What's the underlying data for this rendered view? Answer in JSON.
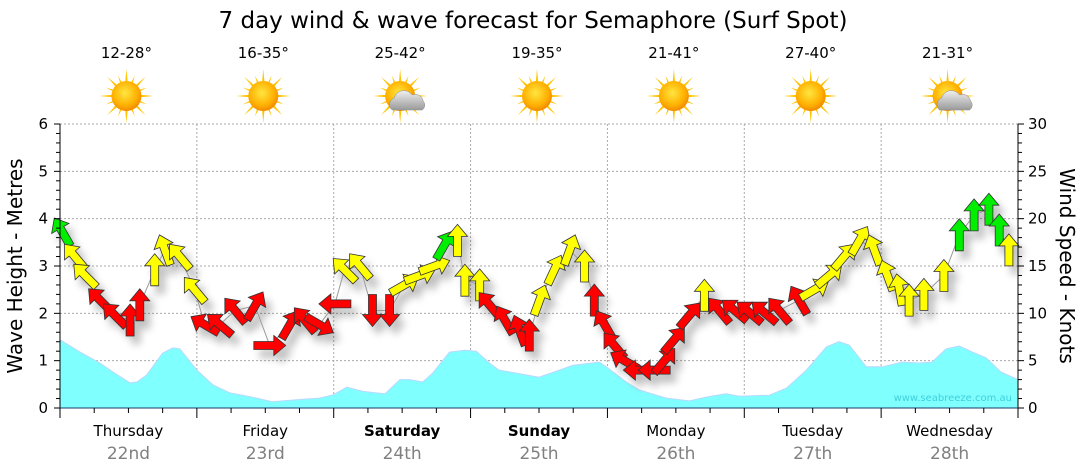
{
  "chart_data": {
    "type": "area+wind-arrows",
    "title": "7 day wind & wave forecast for Semaphore  (Surf Spot)",
    "ylabel_left": "Wave Height - Metres",
    "ylabel_right": "Wind Speed - Knots",
    "ylim_left": [
      0,
      6
    ],
    "ylim_right": [
      0,
      30
    ],
    "yticks_left": [
      "0",
      "1",
      "2",
      "3",
      "4",
      "5",
      "6"
    ],
    "yticks_right": [
      "0",
      "5",
      "10",
      "15",
      "20",
      "25",
      "30"
    ],
    "xlim_hours": [
      0,
      168
    ],
    "grid": true,
    "watermark": "www.seabreeze.com.au",
    "days": [
      {
        "day": "Thursday",
        "date": "22nd",
        "temp": "12-28°",
        "icon": "sun-icon",
        "bold": false
      },
      {
        "day": "Friday",
        "date": "23rd",
        "temp": "16-35°",
        "icon": "sun-icon",
        "bold": false
      },
      {
        "day": "Saturday",
        "date": "24th",
        "temp": "25-42°",
        "icon": "sun-cloud-icon",
        "bold": true
      },
      {
        "day": "Sunday",
        "date": "25th",
        "temp": "19-35°",
        "icon": "sun-icon",
        "bold": true
      },
      {
        "day": "Monday",
        "date": "26th",
        "temp": "21-41°",
        "icon": "sun-icon",
        "bold": false
      },
      {
        "day": "Tuesday",
        "date": "27th",
        "temp": "27-40°",
        "icon": "sun-icon",
        "bold": false
      },
      {
        "day": "Wednesday",
        "date": "28th",
        "temp": "21-31°",
        "icon": "sun-cloud-icon",
        "bold": false
      }
    ],
    "wave_series": {
      "name": "Wave Height (m)",
      "color": "#80ffff",
      "hours": [
        0,
        3.5,
        7,
        9.3,
        12.3,
        13.5,
        15.2,
        18,
        19.8,
        21,
        24,
        26.8,
        29.8,
        32,
        34.5,
        37.3,
        42,
        45.5,
        48,
        50.3,
        53.1,
        57,
        59.6,
        61.3,
        63.6,
        65.3,
        68.3,
        71,
        73,
        75.3,
        77,
        84,
        87.6,
        89.9,
        94.6,
        95.8,
        99.3,
        101.6,
        106.3,
        110.4,
        113.3,
        116.8,
        119.1,
        124.4,
        127.4,
        130.9,
        134.4,
        136.6,
        138.4,
        141.4,
        144.2,
        147.7,
        150.7,
        152.9,
        155.4,
        157.7,
        160,
        162.4,
        165,
        168
      ],
      "values": [
        1.44,
        1.18,
        0.95,
        0.76,
        0.53,
        0.55,
        0.7,
        1.16,
        1.27,
        1.25,
        0.8,
        0.49,
        0.32,
        0.27,
        0.21,
        0.13,
        0.18,
        0.21,
        0.28,
        0.44,
        0.35,
        0.3,
        0.6,
        0.6,
        0.55,
        0.73,
        1.18,
        1.22,
        1.2,
        0.95,
        0.8,
        0.65,
        0.8,
        0.9,
        0.97,
        0.87,
        0.55,
        0.38,
        0.21,
        0.15,
        0.23,
        0.3,
        0.25,
        0.27,
        0.42,
        0.8,
        1.29,
        1.4,
        1.33,
        0.87,
        0.87,
        0.97,
        0.95,
        0.97,
        1.25,
        1.31,
        1.18,
        1.06,
        0.76,
        0.6
      ]
    },
    "wind_series": {
      "name": "Wind Speed (knots)",
      "colors": {
        "g": "#00ee00",
        "y": "#ffff00",
        "r": "#ff0000"
      },
      "hours": [
        0.4,
        2.6,
        4.4,
        7,
        9.6,
        12.3,
        14,
        16.6,
        18.4,
        21,
        23.6,
        25.4,
        28,
        30.7,
        34.2,
        36.8,
        40.3,
        42.9,
        45.5,
        48.2,
        49.9,
        52.6,
        54.8,
        57.8,
        60.4,
        63.1,
        65.7,
        67.4,
        69.7,
        71,
        73.6,
        75.3,
        78,
        80.6,
        82.3,
        84.1,
        86.7,
        89.4,
        92,
        93.7,
        95.5,
        97.2,
        99,
        101.6,
        104.2,
        106,
        107.7,
        110.4,
        113,
        115.6,
        118.3,
        120.9,
        123.5,
        126.1,
        129.6,
        132.3,
        134.9,
        137.5,
        140.2,
        142.8,
        145.1,
        147.2,
        148.9,
        151.5,
        155,
        157.7,
        160.3,
        162.9,
        164.7,
        166.4
      ],
      "knots": [
        18.6,
        16,
        14,
        11.4,
        9.8,
        9.3,
        10.9,
        14.6,
        16.7,
        16,
        12.5,
        8.8,
        8.8,
        10.3,
        10.8,
        6.6,
        8.8,
        9.3,
        8.8,
        11,
        14.6,
        15,
        10.3,
        10.3,
        13,
        14,
        15,
        17.2,
        17.7,
        13.5,
        13,
        10.9,
        9.3,
        8.2,
        7.7,
        11.4,
        14.6,
        16.7,
        15,
        11.4,
        8.8,
        6.6,
        5,
        4,
        4,
        5,
        7.2,
        9.8,
        11.9,
        10.3,
        10.3,
        10.1,
        10.1,
        10.3,
        11.4,
        12.5,
        14,
        16,
        17.7,
        16.7,
        14,
        12.5,
        11.4,
        12,
        14,
        18.3,
        20.4,
        21,
        18.8,
        16.7
      ],
      "arrow_heading_deg": [
        -30,
        -40,
        -45,
        -45,
        -45,
        0,
        0,
        0,
        -20,
        -40,
        -40,
        -60,
        -50,
        -40,
        30,
        90,
        30,
        -40,
        120,
        -90,
        -45,
        -40,
        180,
        180,
        60,
        70,
        70,
        30,
        0,
        0,
        0,
        -40,
        -30,
        -20,
        0,
        20,
        25,
        20,
        0,
        0,
        -30,
        -40,
        -60,
        -90,
        -90,
        40,
        40,
        40,
        0,
        -40,
        -50,
        -50,
        -50,
        -40,
        -30,
        60,
        50,
        40,
        30,
        -20,
        -20,
        -10,
        0,
        0,
        0,
        0,
        0,
        0,
        0,
        0
      ],
      "color_band": [
        "g",
        "y",
        "y",
        "r",
        "r",
        "r",
        "r",
        "y",
        "y",
        "y",
        "y",
        "r",
        "r",
        "r",
        "r",
        "r",
        "r",
        "r",
        "r",
        "r",
        "y",
        "y",
        "r",
        "r",
        "y",
        "y",
        "y",
        "g",
        "y",
        "y",
        "y",
        "r",
        "r",
        "r",
        "r",
        "y",
        "y",
        "y",
        "y",
        "r",
        "r",
        "r",
        "r",
        "r",
        "r",
        "r",
        "r",
        "r",
        "y",
        "r",
        "r",
        "r",
        "r",
        "r",
        "r",
        "y",
        "y",
        "y",
        "y",
        "y",
        "y",
        "y",
        "y",
        "y",
        "y",
        "g",
        "g",
        "g",
        "g",
        "y"
      ]
    }
  }
}
